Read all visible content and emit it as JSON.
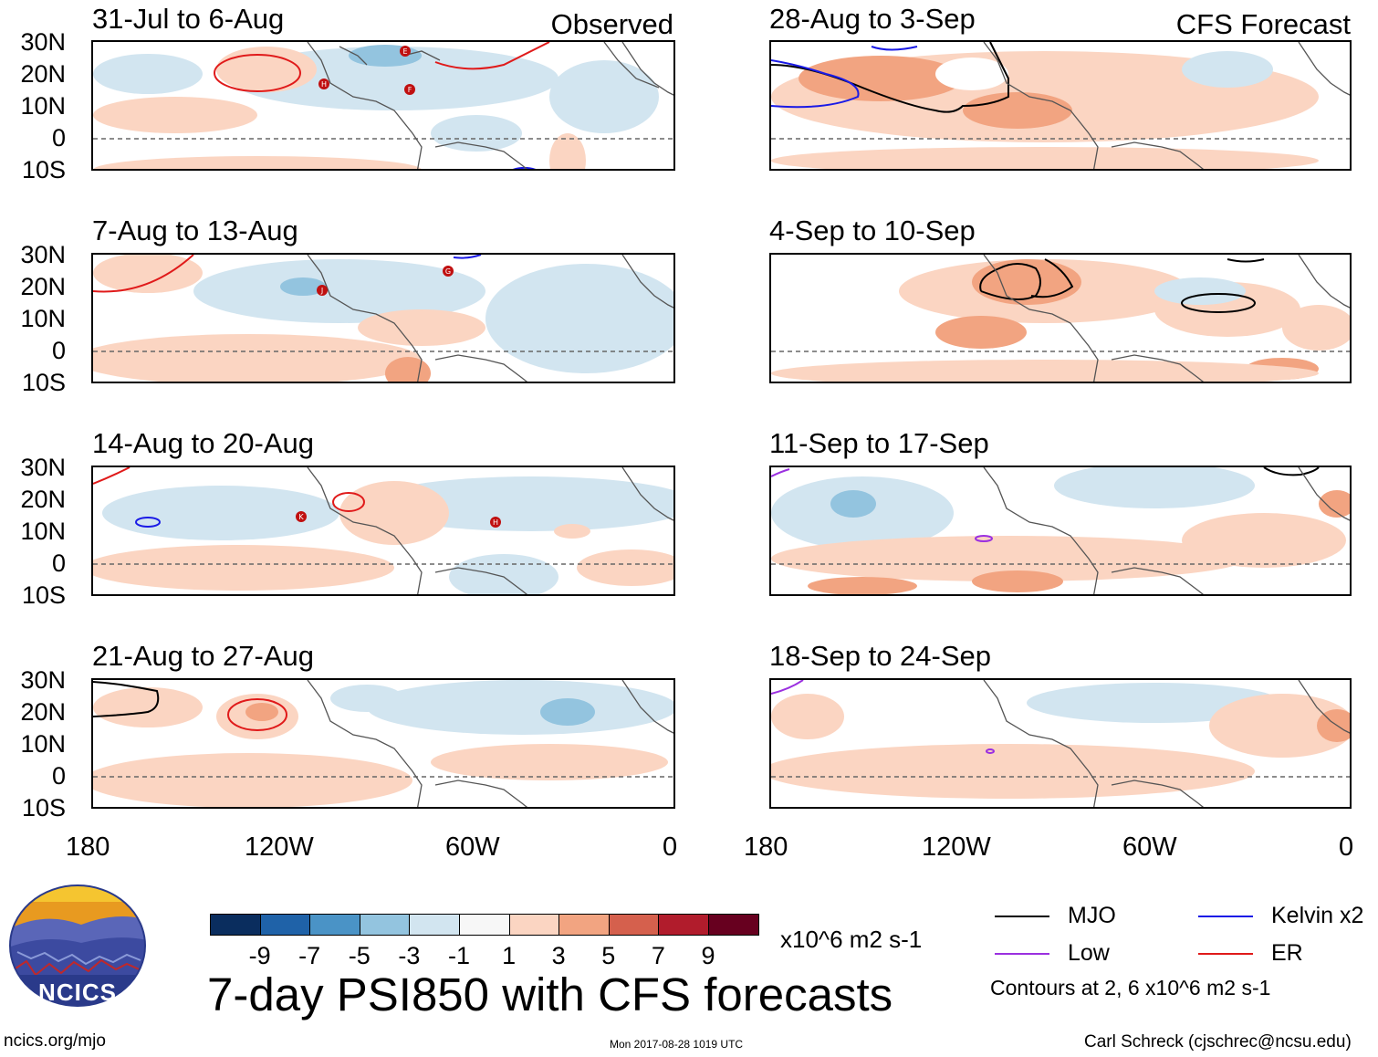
{
  "panels_left": [
    {
      "title": "31-Jul to 6-Aug",
      "tag": "Observed"
    },
    {
      "title": "7-Aug to 13-Aug",
      "tag": ""
    },
    {
      "title": "14-Aug to 20-Aug",
      "tag": ""
    },
    {
      "title": "21-Aug to 27-Aug",
      "tag": ""
    }
  ],
  "panels_right": [
    {
      "title": "28-Aug to 3-Sep",
      "tag": "CFS Forecast"
    },
    {
      "title": "4-Sep to 10-Sep",
      "tag": ""
    },
    {
      "title": "11-Sep to 17-Sep",
      "tag": ""
    },
    {
      "title": "18-Sep to 24-Sep",
      "tag": ""
    }
  ],
  "lat_labels": [
    "30N",
    "20N",
    "10N",
    "0",
    "10S"
  ],
  "lon_labels": [
    "180",
    "120W",
    "60W",
    "0"
  ],
  "storm_markers": [
    "E",
    "F",
    "H",
    "G",
    "J",
    "K",
    "H"
  ],
  "colorbar": {
    "colors": [
      "#0a2d5e",
      "#1f62a8",
      "#4a93c6",
      "#93c4df",
      "#d2e5f0",
      "#f7f7f7",
      "#fbd5c2",
      "#f2a481",
      "#d5604d",
      "#b11c2c",
      "#67001f"
    ],
    "ticks": [
      "-9",
      "-7",
      "-5",
      "-3",
      "-1",
      "1",
      "3",
      "5",
      "7",
      "9"
    ],
    "units": "x10^6 m2 s-1"
  },
  "main_title": "7-day PSI850 with CFS forecasts",
  "legend": {
    "items": [
      {
        "label": "MJO",
        "color": "#000000"
      },
      {
        "label": "Kelvin x2",
        "color": "#1a1ae6"
      },
      {
        "label": "Low",
        "color": "#9b30e0"
      },
      {
        "label": "ER",
        "color": "#e01a1a"
      }
    ],
    "note": "Contours at 2, 6 x10^6 m2 s-1"
  },
  "logo_text": "NCICS",
  "footer": {
    "left": "ncics.org/mjo",
    "center": "Mon 2017-08-28 1019 UTC",
    "right": "Carl Schreck (cjschrec@ncsu.edu)"
  }
}
